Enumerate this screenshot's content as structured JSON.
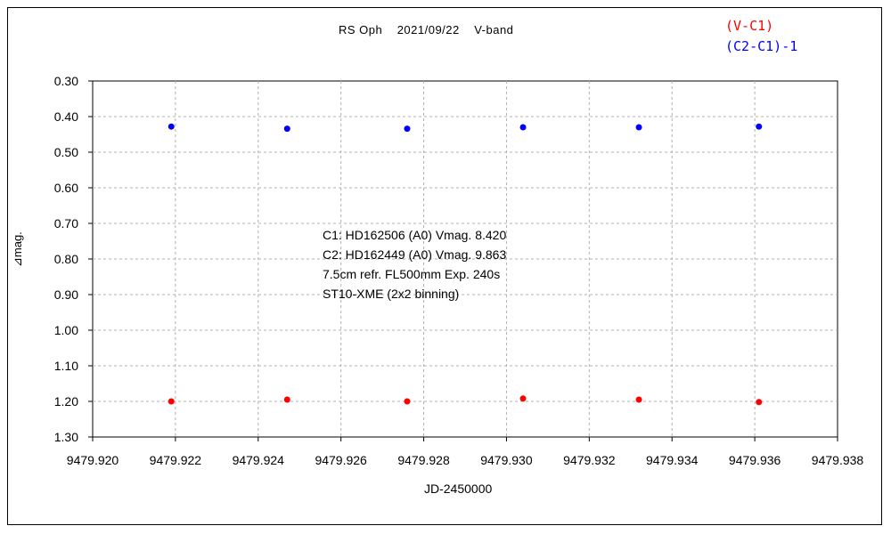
{
  "chart_data": {
    "type": "scatter",
    "title": "RS Oph    2021/09/22    V-band",
    "xlabel": "JD-2450000",
    "ylabel": "⊿mag.",
    "xlim": [
      9479.92,
      9479.938
    ],
    "ylim": [
      0.3,
      1.3
    ],
    "y_inverted": true,
    "grid": true,
    "legend_position": "top-right",
    "x_ticks": [
      "9479.920",
      "9479.922",
      "9479.924",
      "9479.926",
      "9479.928",
      "9479.930",
      "9479.932",
      "9479.934",
      "9479.936",
      "9479.938"
    ],
    "y_ticks": [
      "0.30",
      "0.40",
      "0.50",
      "0.60",
      "0.70",
      "0.80",
      "0.90",
      "1.00",
      "1.10",
      "1.20",
      "1.30"
    ],
    "series": [
      {
        "name": "(V-C1)",
        "color": "#ff0000",
        "x": [
          9479.9219,
          9479.9247,
          9479.9276,
          9479.9304,
          9479.9332,
          9479.9361
        ],
        "y": [
          1.2,
          1.195,
          1.2,
          1.192,
          1.195,
          1.202
        ]
      },
      {
        "name": "(C2-C1)-1",
        "color": "#0000ff",
        "x": [
          9479.9219,
          9479.9247,
          9479.9276,
          9479.9304,
          9479.9332,
          9479.9361
        ],
        "y": [
          0.428,
          0.434,
          0.434,
          0.43,
          0.43,
          0.428
        ]
      }
    ],
    "annotations": [
      "C1: HD162506 (A0) Vmag. 8.420",
      "C2: HD162449 (A0) Vmag. 9.863",
      "7.5cm refr. FL500mm Exp. 240s",
      "ST10-XME (2x2 binning)"
    ]
  }
}
